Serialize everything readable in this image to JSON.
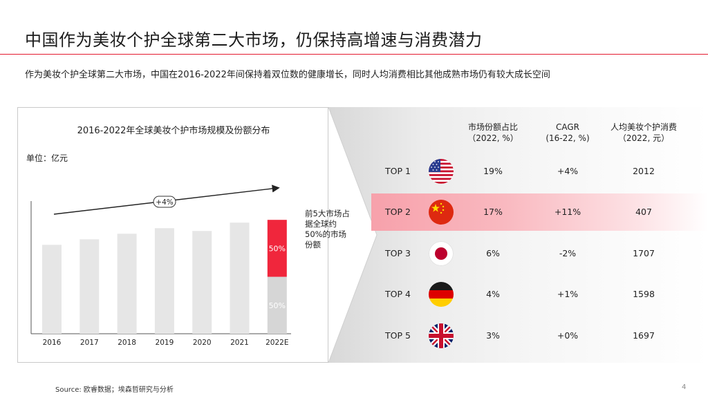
{
  "title": "中国作为美妆个护全球第二大市场，仍保持高增速与消费潜力",
  "subtitle": "作为美妆个护全球第二大市场，中国在2016-2022年间保持着双位数的健康增长，同时人均消费相比其他成熟市场仍有较大成长空间",
  "chart_data": {
    "type": "bar",
    "title": "2016-2022年全球美妆个护市场规模及份额分布",
    "unit": "单位：亿元",
    "categories": [
      "2016",
      "2017",
      "2018",
      "2019",
      "2020",
      "2021",
      "2022E"
    ],
    "values": [
      64,
      68,
      72,
      76,
      74,
      80,
      82
    ],
    "ylim": [
      0,
      100
    ],
    "split_2022": {
      "top_label": "50%",
      "bottom_label": "50%",
      "top_color": "#f0263c",
      "bottom_color": "#d6d6d6"
    },
    "trend_label": "+4%",
    "bar_color": "#e6e6e6",
    "accent": "#f0263c"
  },
  "note": "前5大市场占据全球约50%的市场份额",
  "table": {
    "columns": [
      {
        "line1": "市场份额占比",
        "line2": "（2022, %）"
      },
      {
        "line1": "CAGR",
        "line2": "(16-22, %)"
      },
      {
        "line1": "人均美妆个护消费",
        "line2": "（2022, 元）"
      }
    ],
    "rows": [
      {
        "rank": "TOP 1",
        "flag": "usa-flag-icon",
        "share": "19%",
        "cagr": "+4%",
        "spend": "2012"
      },
      {
        "rank": "TOP 2",
        "flag": "china-flag-icon",
        "share": "17%",
        "cagr": "+11%",
        "spend": "407"
      },
      {
        "rank": "TOP 3",
        "flag": "japan-flag-icon",
        "share": "6%",
        "cagr": "-2%",
        "spend": "1707"
      },
      {
        "rank": "TOP 4",
        "flag": "germany-flag-icon",
        "share": "4%",
        "cagr": "+1%",
        "spend": "1598"
      },
      {
        "rank": "TOP 5",
        "flag": "uk-flag-icon",
        "share": "3%",
        "cagr": "+0%",
        "spend": "1697"
      }
    ]
  },
  "source": "Source: 欧睿数据；埃森哲研究与分析",
  "page_number": "4"
}
